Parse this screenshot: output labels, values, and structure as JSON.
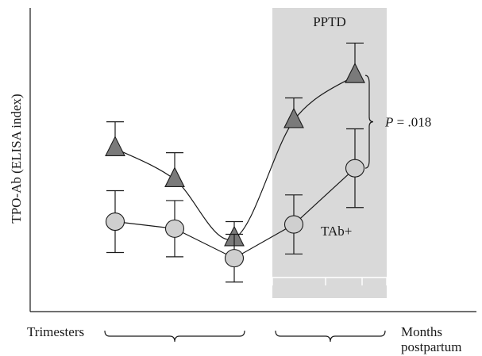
{
  "chart_data": {
    "type": "line",
    "ylabel": "TPO-Ab (ELISA index)",
    "x_groups": [
      {
        "label": "Trimesters",
        "points": [
          0,
          1,
          2
        ]
      },
      {
        "label": "Months postpartum",
        "points": [
          3,
          4,
          5
        ]
      }
    ],
    "shaded_region": {
      "label": "PPTD",
      "from_point": 3,
      "to_point": 5
    },
    "series": [
      {
        "name": "PPTD",
        "marker": "triangle",
        "values": [
          5.0,
          3.9,
          1.8,
          6.0,
          7.6
        ],
        "error": [
          0.95,
          0.95,
          0.6,
          0.8,
          1.15
        ],
        "x_index": [
          0,
          1,
          2,
          3,
          4
        ]
      },
      {
        "name": "TAb+",
        "marker": "circle",
        "values": [
          2.4,
          2.15,
          1.1,
          2.3,
          4.3
        ],
        "error": [
          1.1,
          1.0,
          0.85,
          1.05,
          1.4
        ],
        "x_index": [
          0,
          1,
          2,
          3,
          4
        ]
      }
    ],
    "annotations": [
      {
        "text_prefix": "P",
        "text": " = .018",
        "between_series_at_index": 4
      },
      {
        "text": "TAb+",
        "near_series": "TAb+",
        "at_index": 3
      }
    ],
    "ylim": [
      -0.8,
      10.0
    ],
    "grid": false,
    "legend": "none",
    "colors": {
      "triangle": "#7a7a7a",
      "circle": "#cfcfcf",
      "shade": "#d9d9d9",
      "line": "#1a1a1a"
    }
  }
}
